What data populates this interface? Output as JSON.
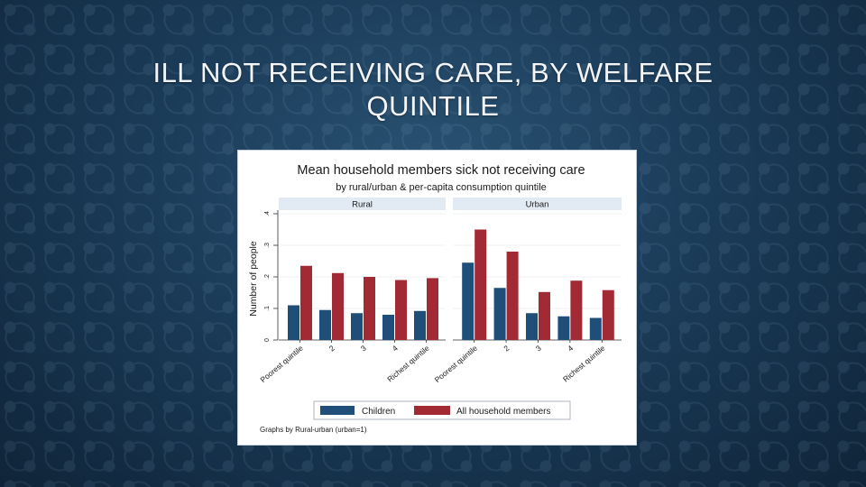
{
  "slide": {
    "title_line1": "ILL NOT RECEIVING CARE, BY WELFARE",
    "title_line2": "QUINTILE"
  },
  "colors": {
    "children": "#1f4e79",
    "all_members": "#a12a34",
    "panel_header": "#e2ebf3",
    "gridline": "#e6ebf0"
  },
  "chart_data": {
    "type": "bar",
    "title": "Mean household members sick not receiving care",
    "subtitle": "by rural/urban & per-capita consumption quintile",
    "ylabel": "Number of people",
    "ylim": [
      0,
      4
    ],
    "yticks": [
      "0",
      ".1",
      ".2",
      ".3",
      ".4"
    ],
    "ytick_values": [
      0,
      1,
      2,
      3,
      4
    ],
    "grid": true,
    "categories": [
      "Poorest quintile",
      "2",
      "3",
      "4",
      "Richest quintile"
    ],
    "legend_position": "bottom",
    "note": "Graphs by Rural-urban (urban=1)",
    "panels": [
      {
        "label": "Rural",
        "series": [
          {
            "name": "Children",
            "values": [
              1.1,
              0.95,
              0.85,
              0.8,
              0.92
            ]
          },
          {
            "name": "All household members",
            "values": [
              2.35,
              2.12,
              2.0,
              1.9,
              1.96
            ]
          }
        ]
      },
      {
        "label": "Urban",
        "series": [
          {
            "name": "Children",
            "values": [
              2.45,
              1.65,
              0.85,
              0.75,
              0.7
            ]
          },
          {
            "name": "All household members",
            "values": [
              3.5,
              2.8,
              1.52,
              1.88,
              1.58
            ]
          }
        ]
      }
    ]
  }
}
